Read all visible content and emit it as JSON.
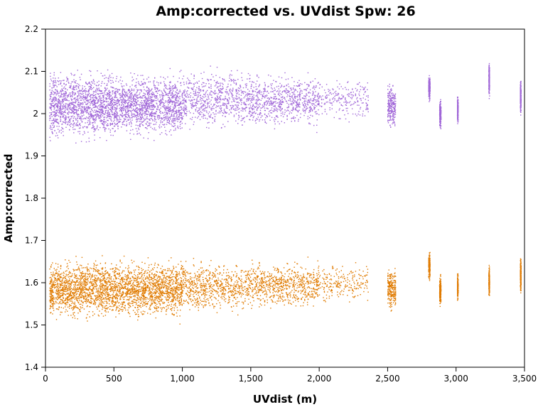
{
  "chart_data": {
    "type": "scatter",
    "title": "Amp:corrected vs. UVdist Spw: 26",
    "xlabel": "UVdist (m)",
    "ylabel": "Amp:corrected",
    "xlim": [
      0,
      3500
    ],
    "ylim": [
      1.4,
      2.2
    ],
    "x_ticks": [
      0,
      500,
      1000,
      1500,
      2000,
      2500,
      3000,
      3500
    ],
    "x_tick_labels": [
      "0",
      "500",
      "1,000",
      "1,500",
      "2,000",
      "2,500",
      "3,000",
      "3,500"
    ],
    "y_ticks": [
      1.4,
      1.5,
      1.6,
      1.7,
      1.8,
      1.9,
      2.0,
      2.1,
      2.2
    ],
    "y_tick_labels": [
      "1.4",
      "1.5",
      "1.6",
      "1.7",
      "1.8",
      "1.9",
      "2",
      "2.1",
      "2.2"
    ],
    "grid": false,
    "series": [
      {
        "color": "#a066d8",
        "clusters": [
          {
            "x": [
              30,
              500
            ],
            "center": 2.02,
            "spread": 0.06,
            "density": "dense"
          },
          {
            "x": [
              500,
              1000
            ],
            "center": 2.02,
            "spread": 0.055,
            "density": "dense"
          },
          {
            "x": [
              1000,
              1500
            ],
            "center": 2.035,
            "spread": 0.05,
            "density": "medium"
          },
          {
            "x": [
              1500,
              2000
            ],
            "center": 2.03,
            "spread": 0.045,
            "density": "medium"
          },
          {
            "x": [
              2000,
              2360
            ],
            "center": 2.035,
            "spread": 0.04,
            "density": "sparse"
          },
          {
            "x": [
              2500,
              2560
            ],
            "center": 2.02,
            "spread": 0.04,
            "density": "sparse"
          },
          {
            "x": [
              2800,
              2810
            ],
            "center": 2.06,
            "spread": 0.02,
            "density": "sparse"
          },
          {
            "x": [
              2880,
              2890
            ],
            "center": 2.0,
            "spread": 0.03,
            "density": "sparse"
          },
          {
            "x": [
              3010,
              3015
            ],
            "center": 2.01,
            "spread": 0.025,
            "density": "sparse"
          },
          {
            "x": [
              3240,
              3245
            ],
            "center": 2.08,
            "spread": 0.03,
            "density": "sparse"
          },
          {
            "x": [
              3470,
              3475
            ],
            "center": 2.04,
            "spread": 0.03,
            "density": "sparse"
          }
        ]
      },
      {
        "color": "#e07b00",
        "clusters": [
          {
            "x": [
              30,
              500
            ],
            "center": 1.585,
            "spread": 0.05,
            "density": "dense"
          },
          {
            "x": [
              500,
              1000
            ],
            "center": 1.585,
            "spread": 0.05,
            "density": "dense"
          },
          {
            "x": [
              1000,
              1500
            ],
            "center": 1.59,
            "spread": 0.045,
            "density": "medium"
          },
          {
            "x": [
              1500,
              2000
            ],
            "center": 1.595,
            "spread": 0.04,
            "density": "medium"
          },
          {
            "x": [
              2000,
              2360
            ],
            "center": 1.6,
            "spread": 0.035,
            "density": "sparse"
          },
          {
            "x": [
              2500,
              2560
            ],
            "center": 1.585,
            "spread": 0.035,
            "density": "sparse"
          },
          {
            "x": [
              2800,
              2810
            ],
            "center": 1.64,
            "spread": 0.025,
            "density": "sparse"
          },
          {
            "x": [
              2880,
              2890
            ],
            "center": 1.58,
            "spread": 0.025,
            "density": "sparse"
          },
          {
            "x": [
              3010,
              3015
            ],
            "center": 1.59,
            "spread": 0.025,
            "density": "sparse"
          },
          {
            "x": [
              3240,
              3245
            ],
            "center": 1.6,
            "spread": 0.025,
            "density": "sparse"
          },
          {
            "x": [
              3470,
              3475
            ],
            "center": 1.62,
            "spread": 0.03,
            "density": "sparse"
          }
        ]
      }
    ]
  }
}
